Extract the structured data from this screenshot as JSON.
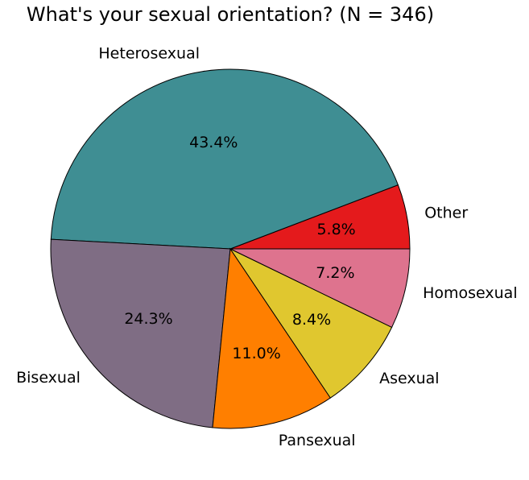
{
  "chart_data": {
    "type": "pie",
    "title": "What's your sexual orientation? (N = 346)",
    "start_angle_deg": 0,
    "direction": "counterclockwise",
    "slices": [
      {
        "label": "Other",
        "percent": 5.8,
        "pct_label": "5.8%",
        "color": "#e41a1c"
      },
      {
        "label": "Heterosexual",
        "percent": 43.4,
        "pct_label": "43.4%",
        "color": "#3f8e93"
      },
      {
        "label": "Bisexual",
        "percent": 24.3,
        "pct_label": "24.3%",
        "color": "#7f6d84"
      },
      {
        "label": "Pansexual",
        "percent": 11.0,
        "pct_label": "11.0%",
        "color": "#ff7f00"
      },
      {
        "label": "Asexual",
        "percent": 8.4,
        "pct_label": "8.4%",
        "color": "#e0c72f"
      },
      {
        "label": "Homosexual",
        "percent": 7.2,
        "pct_label": "7.2%",
        "color": "#de738e"
      }
    ]
  }
}
